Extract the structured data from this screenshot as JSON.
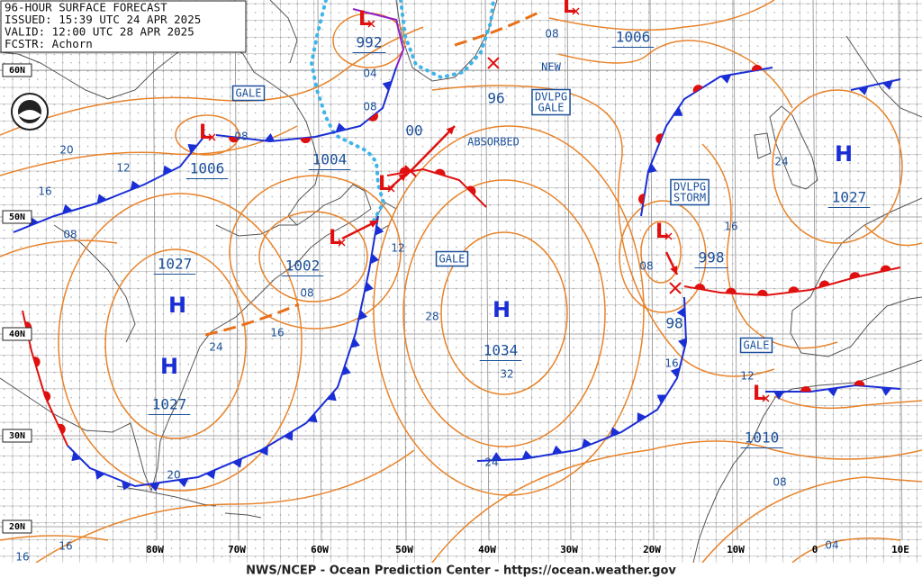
{
  "header": {
    "lines": [
      "96-HOUR SURFACE FORECAST",
      "ISSUED: 15:39 UTC 24 APR 2025",
      "VALID:  12:00 UTC 28 APR 2025",
      "FCSTR:  Achorn"
    ]
  },
  "footer": "NWS/NCEP - Ocean Prediction Center - https://ocean.weather.gov",
  "lat_labels": [
    "60N",
    "50N",
    "40N",
    "30N",
    "20N"
  ],
  "lon_labels": [
    "80W",
    "70W",
    "60W",
    "50W",
    "40W",
    "30W",
    "20W",
    "10W",
    "0",
    "10E"
  ],
  "centers": [
    {
      "symbol": "L",
      "pressure": "1006"
    },
    {
      "symbol": "L",
      "pressure": "992"
    },
    {
      "symbol": "L",
      "pressure": "1004"
    },
    {
      "symbol": "L",
      "pressure": "1002"
    },
    {
      "symbol": "L",
      "pressure": "998"
    },
    {
      "symbol": "L",
      "pressure": "1010"
    },
    {
      "symbol": "L",
      "pressure": "1006"
    },
    {
      "symbol": "H",
      "pressure": "1027"
    },
    {
      "symbol": "H",
      "pressure": "1027"
    },
    {
      "symbol": "H",
      "pressure": "1034"
    },
    {
      "symbol": "H",
      "pressure": "1027"
    }
  ],
  "boxes": [
    [
      "GALE"
    ],
    [
      "DVLPG",
      "GALE"
    ],
    [
      "GALE"
    ],
    [
      "DVLPG",
      "STORM"
    ],
    [
      "GALE"
    ]
  ],
  "notes": [
    "NEW",
    "ABSORBED",
    "00",
    "96",
    "98"
  ],
  "isobar_labels": [
    "20",
    "12",
    "16",
    "08",
    "08",
    "04",
    "08",
    "08",
    "24",
    "16",
    "08",
    "12",
    "28",
    "32",
    "24",
    "08",
    "16",
    "16",
    "24",
    "12",
    "08",
    "20",
    "16",
    "16",
    "04"
  ]
}
